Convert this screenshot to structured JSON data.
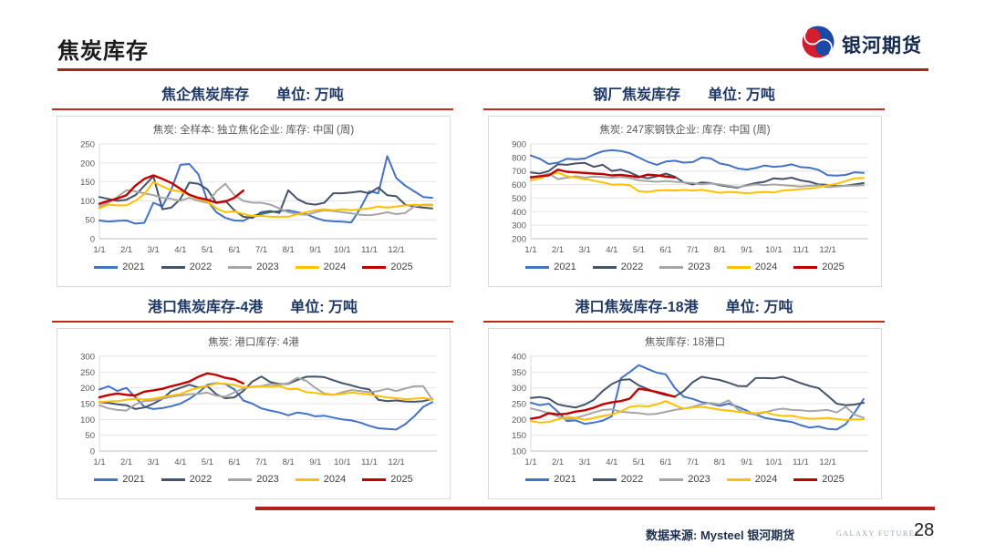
{
  "page": {
    "title": "焦炭库存",
    "logo_text": "银河期货",
    "footer": {
      "source": "数据来源: Mysteel 银河期货",
      "brand": "GALAXY FUTURES",
      "page_number": "28"
    }
  },
  "colors": {
    "accent_red": "#b02318",
    "header_navy": "#1f3864",
    "logo_red": "#d0202e",
    "logo_blue": "#1b49a8"
  },
  "chart_data": [
    {
      "type": "line",
      "header": "焦企焦炭库存",
      "unit_label": "单位: 万吨",
      "title": "焦炭: 全样本: 独立焦化企业: 库存: 中国 (周)",
      "ylim": [
        0,
        250
      ],
      "y_step": 50,
      "x_max": 12.5,
      "x_tick_labels": [
        "1/1",
        "2/1",
        "3/1",
        "4/1",
        "5/1",
        "6/1",
        "7/1",
        "8/1",
        "9/1",
        "10/1",
        "11/1",
        "12/1"
      ],
      "grid": true,
      "legend_position": "bottom",
      "series": [
        {
          "name": "2021",
          "color": "#4472c4",
          "x_end": 12.33,
          "values": [
            48,
            45,
            47,
            48,
            40,
            42,
            95,
            85,
            130,
            195,
            197,
            170,
            100,
            70,
            55,
            48,
            47,
            60,
            65,
            70,
            73,
            75,
            70,
            65,
            55,
            48,
            46,
            45,
            43,
            80,
            125,
            120,
            218,
            160,
            140,
            125,
            110,
            108
          ]
        },
        {
          "name": "2022",
          "color": "#44546a",
          "x_end": 12.33,
          "values": [
            110,
            105,
            100,
            103,
            115,
            140,
            165,
            78,
            82,
            105,
            148,
            145,
            130,
            95,
            100,
            75,
            58,
            55,
            70,
            73,
            68,
            128,
            105,
            93,
            90,
            95,
            120,
            120,
            122,
            125,
            120,
            135,
            115,
            112,
            90,
            85,
            82,
            80
          ]
        },
        {
          "name": "2023",
          "color": "#a6a6a6",
          "x_end": 12.33,
          "values": [
            85,
            95,
            110,
            128,
            125,
            120,
            115,
            108,
            105,
            100,
            108,
            100,
            95,
            125,
            145,
            115,
            100,
            95,
            95,
            90,
            80,
            70,
            65,
            63,
            70,
            75,
            73,
            70,
            67,
            63,
            62,
            65,
            70,
            65,
            68,
            85,
            90,
            90
          ]
        },
        {
          "name": "2024",
          "color": "#ffc000",
          "x_end": 12.33,
          "values": [
            80,
            90,
            88,
            88,
            100,
            118,
            150,
            138,
            128,
            125,
            115,
            105,
            98,
            80,
            70,
            72,
            65,
            60,
            60,
            58,
            58,
            58,
            65,
            70,
            75,
            78,
            75,
            78,
            75,
            78,
            80,
            85,
            82,
            85,
            88,
            90,
            88,
            88
          ]
        },
        {
          "name": "2025",
          "color": "#c00000",
          "x_end": 5.33,
          "values": [
            92,
            100,
            106,
            115,
            140,
            158,
            167,
            158,
            147,
            132,
            116,
            108,
            103,
            95,
            98,
            108,
            127
          ]
        }
      ]
    },
    {
      "type": "line",
      "header": "钢厂焦炭库存",
      "unit_label": "单位: 万吨",
      "title": "焦炭: 247家钢铁企业: 库存: 中国 (周)",
      "ylim": [
        200,
        900
      ],
      "y_step": 100,
      "x_max": 12.5,
      "x_tick_labels": [
        "1/1",
        "2/1",
        "3/1",
        "4/1",
        "5/1",
        "6/1",
        "7/1",
        "8/1",
        "9/1",
        "10/1",
        "11/1",
        "12/1"
      ],
      "grid": true,
      "legend_position": "bottom",
      "series": [
        {
          "name": "2021",
          "color": "#4472c4",
          "x_end": 12.33,
          "values": [
            815,
            790,
            752,
            762,
            790,
            786,
            792,
            822,
            846,
            855,
            848,
            832,
            800,
            768,
            746,
            770,
            776,
            762,
            766,
            800,
            793,
            756,
            744,
            719,
            711,
            722,
            741,
            731,
            736,
            749,
            729,
            724,
            708,
            670,
            666,
            671,
            691,
            686
          ]
        },
        {
          "name": "2022",
          "color": "#44546a",
          "x_end": 12.33,
          "values": [
            690,
            681,
            700,
            750,
            746,
            756,
            760,
            731,
            746,
            701,
            711,
            690,
            660,
            646,
            661,
            681,
            659,
            616,
            601,
            616,
            611,
            596,
            586,
            576,
            596,
            611,
            621,
            646,
            641,
            651,
            631,
            621,
            601,
            598,
            589,
            591,
            601,
            611
          ]
        },
        {
          "name": "2023",
          "color": "#a6a6a6",
          "x_end": 12.33,
          "values": [
            646,
            661,
            681,
            641,
            651,
            661,
            651,
            659,
            656,
            651,
            656,
            649,
            631,
            626,
            621,
            626,
            621,
            616,
            611,
            601,
            609,
            601,
            591,
            581,
            591,
            601,
            596,
            601,
            596,
            591,
            586,
            591,
            596,
            581,
            586,
            591,
            593,
            596
          ]
        },
        {
          "name": "2024",
          "color": "#ffc000",
          "x_end": 12.33,
          "values": [
            631,
            646,
            671,
            689,
            661,
            651,
            641,
            629,
            616,
            599,
            601,
            596,
            551,
            546,
            556,
            559,
            556,
            561,
            556,
            561,
            551,
            539,
            546,
            541,
            536,
            541,
            546,
            541,
            556,
            561,
            566,
            571,
            581,
            596,
            606,
            626,
            646,
            649
          ]
        },
        {
          "name": "2025",
          "color": "#c00000",
          "x_end": 5.33,
          "values": [
            655,
            662,
            668,
            710,
            695,
            690,
            686,
            681,
            678,
            668,
            672,
            664,
            655,
            673,
            668,
            660,
            652
          ]
        }
      ]
    },
    {
      "type": "line",
      "header": "港口焦炭库存-4港",
      "unit_label": "单位: 万吨",
      "title": "焦炭: 港口库存: 4港",
      "ylim": [
        0,
        300
      ],
      "y_step": 50,
      "x_max": 12.5,
      "x_tick_labels": [
        "1/1",
        "2/1",
        "3/1",
        "4/1",
        "5/1",
        "6/1",
        "7/1",
        "8/1",
        "9/1",
        "10/1",
        "11/1",
        "12/1"
      ],
      "grid": true,
      "legend_position": "bottom",
      "series": [
        {
          "name": "2021",
          "color": "#4472c4",
          "x_end": 12.33,
          "values": [
            195,
            205,
            190,
            200,
            170,
            140,
            133,
            136,
            142,
            150,
            165,
            185,
            210,
            215,
            212,
            195,
            160,
            150,
            135,
            128,
            122,
            113,
            122,
            118,
            110,
            112,
            106,
            100,
            97,
            90,
            80,
            72,
            70,
            68,
            85,
            110,
            140,
            155
          ]
        },
        {
          "name": "2022",
          "color": "#44546a",
          "x_end": 12.33,
          "values": [
            155,
            152,
            148,
            145,
            133,
            138,
            150,
            165,
            190,
            200,
            210,
            201,
            205,
            180,
            167,
            170,
            190,
            220,
            236,
            218,
            212,
            213,
            225,
            235,
            236,
            234,
            224,
            215,
            208,
            200,
            195,
            162,
            158,
            160,
            157,
            156,
            158,
            165
          ]
        },
        {
          "name": "2023",
          "color": "#a6a6a6",
          "x_end": 12.33,
          "values": [
            145,
            135,
            130,
            128,
            148,
            158,
            160,
            166,
            172,
            176,
            180,
            181,
            185,
            175,
            172,
            186,
            198,
            204,
            206,
            212,
            210,
            215,
            232,
            222,
            200,
            182,
            178,
            186,
            193,
            190,
            186,
            190,
            197,
            190,
            198,
            205,
            205,
            163
          ]
        },
        {
          "name": "2024",
          "color": "#ffc000",
          "x_end": 12.33,
          "values": [
            155,
            157,
            158,
            162,
            165,
            163,
            166,
            171,
            176,
            180,
            192,
            200,
            206,
            214,
            213,
            209,
            202,
            203,
            205,
            204,
            206,
            196,
            197,
            186,
            184,
            179,
            178,
            181,
            185,
            182,
            179,
            174,
            170,
            167,
            164,
            166,
            168,
            163
          ]
        },
        {
          "name": "2025",
          "color": "#c00000",
          "x_end": 5.33,
          "values": [
            170,
            177,
            182,
            178,
            176,
            188,
            192,
            197,
            205,
            212,
            220,
            235,
            246,
            241,
            232,
            227,
            214
          ]
        }
      ]
    },
    {
      "type": "line",
      "header": "港口焦炭库存-18港",
      "unit_label": "单位: 万吨",
      "title": "焦炭库存: 18港口",
      "ylim": [
        100,
        400
      ],
      "y_step": 50,
      "x_max": 12.5,
      "x_tick_labels": [
        "1/1",
        "2/1",
        "3/1",
        "4/1",
        "5/1",
        "6/1",
        "7/1",
        "8/1",
        "9/1",
        "10/1",
        "11/1",
        "12/1"
      ],
      "grid": true,
      "legend_position": "bottom",
      "series": [
        {
          "name": "2021",
          "color": "#4472c4",
          "x_end": 12.33,
          "values": [
            253,
            245,
            250,
            225,
            195,
            197,
            186,
            190,
            196,
            210,
            330,
            350,
            372,
            360,
            348,
            343,
            300,
            272,
            265,
            255,
            250,
            243,
            250,
            240,
            228,
            215,
            205,
            200,
            196,
            192,
            182,
            174,
            178,
            170,
            168,
            185,
            222,
            265
          ]
        },
        {
          "name": "2022",
          "color": "#44546a",
          "x_end": 12.33,
          "values": [
            268,
            271,
            266,
            248,
            242,
            238,
            247,
            262,
            290,
            312,
            325,
            327,
            308,
            296,
            285,
            277,
            272,
            290,
            318,
            335,
            330,
            325,
            316,
            306,
            305,
            331,
            331,
            330,
            335,
            326,
            315,
            306,
            299,
            275,
            250,
            245,
            247,
            253
          ]
        },
        {
          "name": "2023",
          "color": "#a6a6a6",
          "x_end": 12.33,
          "values": [
            235,
            228,
            220,
            210,
            200,
            205,
            213,
            222,
            230,
            232,
            225,
            222,
            220,
            216,
            218,
            224,
            230,
            234,
            240,
            248,
            252,
            248,
            260,
            232,
            220,
            215,
            222,
            230,
            234,
            230,
            229,
            226,
            228,
            230,
            222,
            240,
            215,
            205
          ]
        },
        {
          "name": "2024",
          "color": "#ffc000",
          "x_end": 12.33,
          "values": [
            195,
            190,
            192,
            200,
            208,
            205,
            199,
            205,
            211,
            216,
            225,
            240,
            243,
            241,
            248,
            258,
            245,
            234,
            238,
            240,
            236,
            231,
            228,
            224,
            224,
            219,
            224,
            215,
            211,
            212,
            206,
            202,
            203,
            205,
            201,
            199,
            200,
            200
          ]
        },
        {
          "name": "2025",
          "color": "#c00000",
          "x_end": 5.33,
          "values": [
            202,
            207,
            220,
            216,
            218,
            225,
            229,
            237,
            248,
            254,
            258,
            266,
            297,
            293,
            287,
            280,
            272
          ]
        }
      ]
    }
  ]
}
